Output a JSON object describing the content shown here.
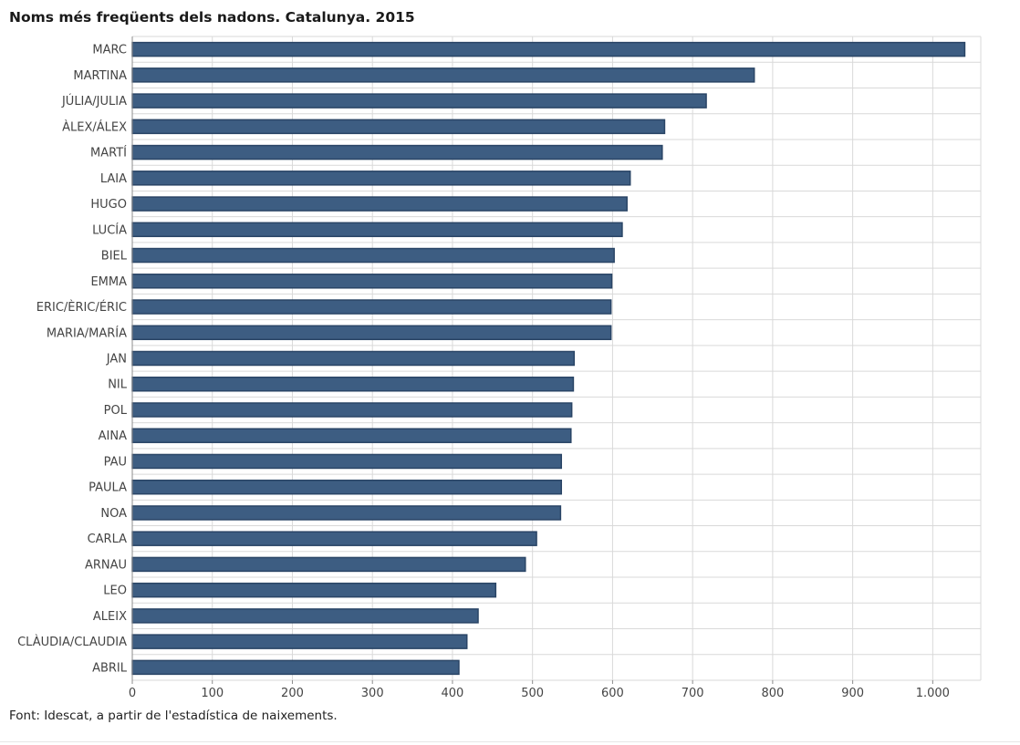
{
  "chart_data": {
    "type": "bar",
    "orientation": "horizontal",
    "title": "Noms més freqüents dels nadons. Catalunya. 2015",
    "source": "Font: Idescat, a partir de l'estadística de naixements.",
    "categories": [
      "MARC",
      "MARTINA",
      "JÚLIA/JULIA",
      "ÀLEX/ÁLEX",
      "MARTÍ",
      "LAIA",
      "HUGO",
      "LUCÍA",
      "BIEL",
      "EMMA",
      "ERIC/ÈRIC/ÉRIC",
      "MARIA/MARÍA",
      "JAN",
      "NIL",
      "POL",
      "AINA",
      "PAU",
      "PAULA",
      "NOA",
      "CARLA",
      "ARNAU",
      "LEO",
      "ALEIX",
      "CLÀUDIA/CLAUDIA",
      "ABRIL"
    ],
    "values": [
      1040,
      777,
      717,
      665,
      662,
      622,
      618,
      612,
      602,
      599,
      598,
      598,
      552,
      551,
      549,
      548,
      536,
      536,
      535,
      505,
      491,
      454,
      432,
      418,
      408
    ],
    "xlim": [
      0,
      1060
    ],
    "x_ticks": [
      0,
      100,
      200,
      300,
      400,
      500,
      600,
      700,
      800,
      900,
      1000
    ],
    "x_tick_labels": [
      "0",
      "100",
      "200",
      "300",
      "400",
      "500",
      "600",
      "700",
      "800",
      "900",
      "1.000"
    ],
    "grid": true,
    "bar_color": "#3d5d82",
    "bar_edge_color": "#2a4566"
  }
}
